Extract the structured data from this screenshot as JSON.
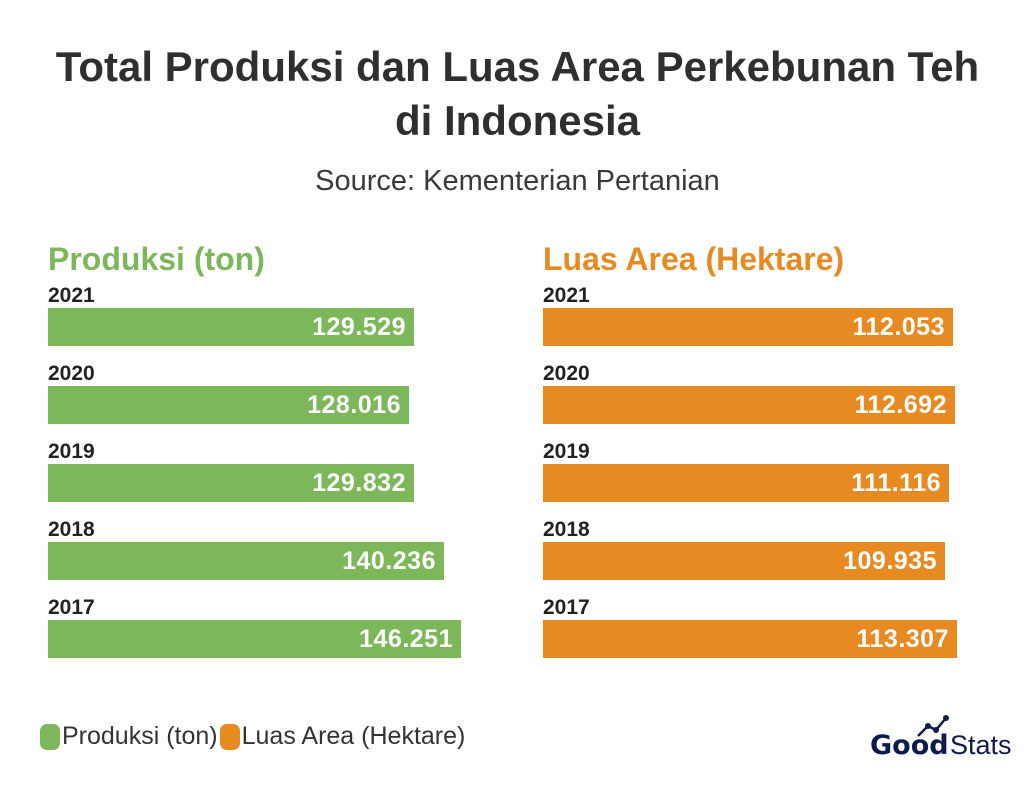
{
  "chart_data": [
    {
      "type": "bar",
      "orientation": "horizontal",
      "title": "Produksi (ton)",
      "color": "#7cb85a",
      "categories": [
        "2021",
        "2020",
        "2019",
        "2018",
        "2017"
      ],
      "values": [
        129529,
        128016,
        129832,
        140236,
        146251
      ],
      "value_labels": [
        "129.529",
        "128.016",
        "129.832",
        "140.236",
        "146.251"
      ],
      "xlim": [
        0,
        163000
      ]
    },
    {
      "type": "bar",
      "orientation": "horizontal",
      "title": "Luas Area (Hektare)",
      "color": "#e88a22",
      "categories": [
        "2021",
        "2020",
        "2019",
        "2018",
        "2017"
      ],
      "values": [
        112053,
        112692,
        111116,
        109935,
        113307
      ],
      "value_labels": [
        "112.053",
        "112.692",
        "111.116",
        "109.935",
        "113.307"
      ],
      "xlim": [
        0,
        125800
      ]
    }
  ],
  "header": {
    "title_line1": "Total Produksi dan Luas Area Perkebunan Teh",
    "title_line2": "di Indonesia",
    "subtitle": "Source: Kementerian Pertanian"
  },
  "legend": [
    {
      "label": "Produksi (ton)",
      "color": "#7cb85a"
    },
    {
      "label": "Luas Area (Hektare)",
      "color": "#e88a22"
    }
  ],
  "logo": {
    "part1": "Good",
    "part2": "Stats"
  },
  "colors": {
    "green": "#7cb85a",
    "orange": "#e88a22",
    "logo": "#0d1b4d"
  }
}
